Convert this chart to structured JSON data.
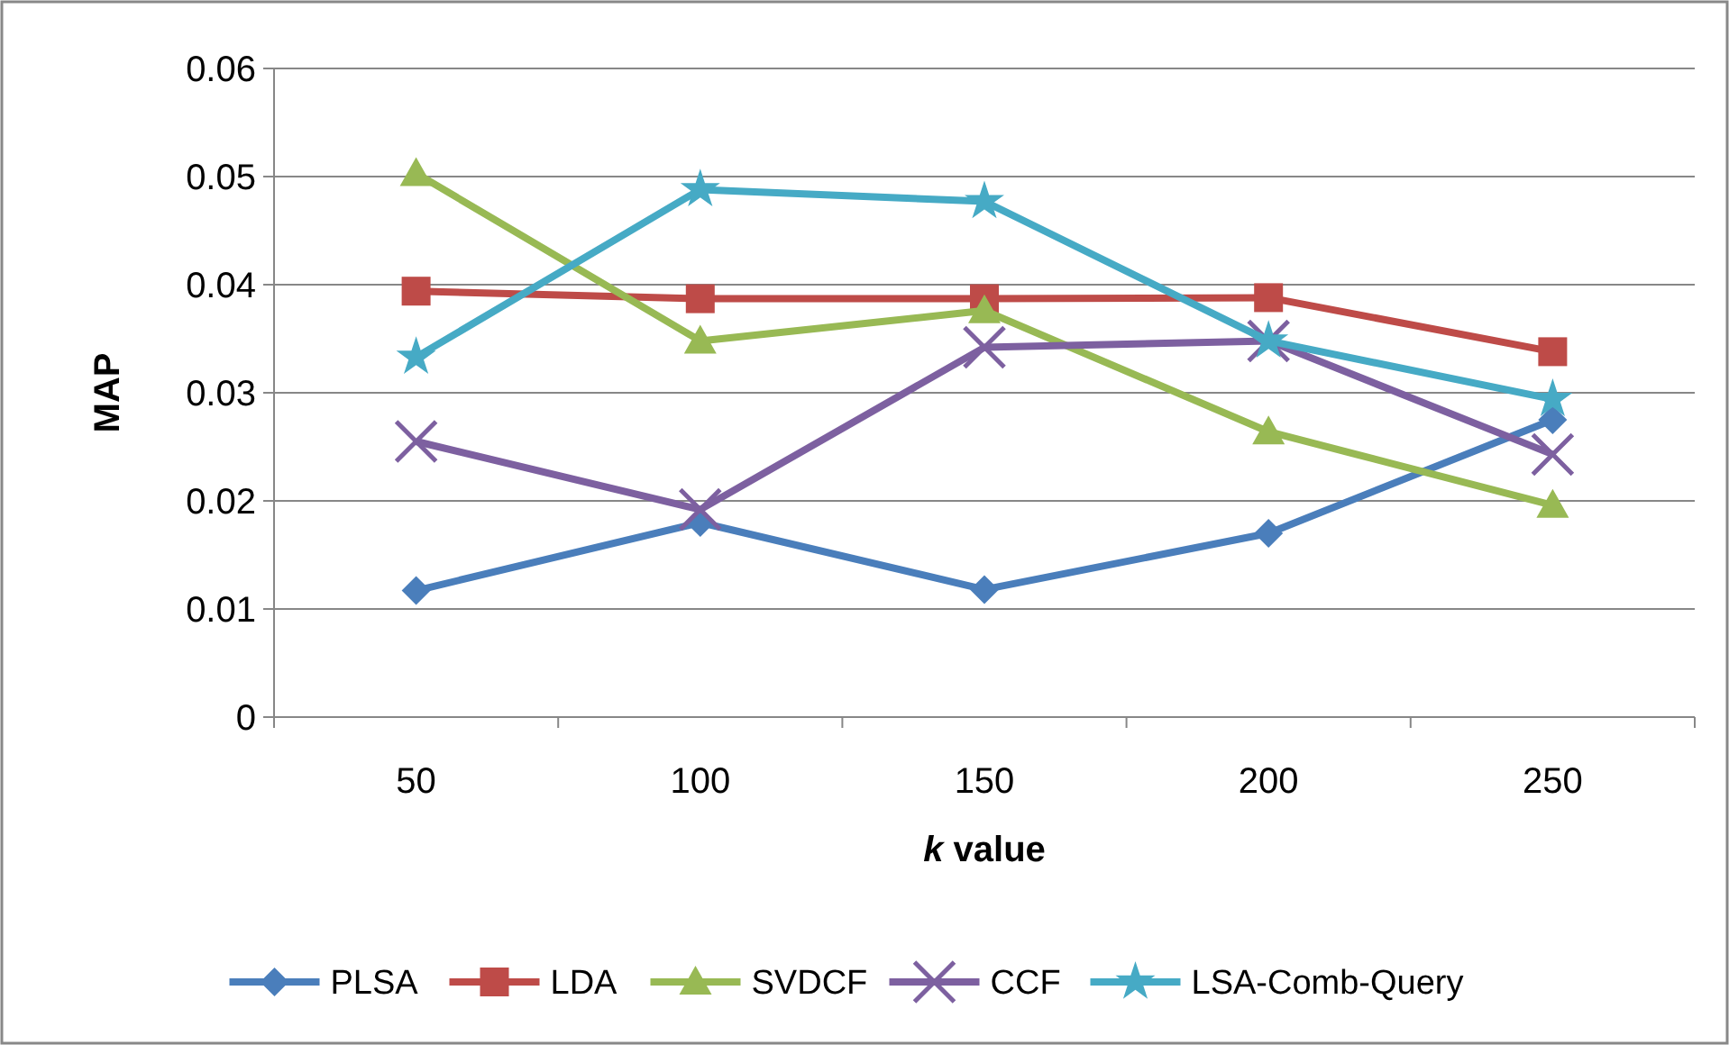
{
  "chart_data": {
    "type": "line",
    "xlabel": "k value",
    "ylabel": "MAP",
    "categories": [
      "50",
      "100",
      "150",
      "200",
      "250"
    ],
    "ylim": [
      0,
      0.06
    ],
    "yticks": [
      {
        "value": 0,
        "label": "0"
      },
      {
        "value": 0.01,
        "label": "0.01"
      },
      {
        "value": 0.02,
        "label": "0.02"
      },
      {
        "value": 0.03,
        "label": "0.03"
      },
      {
        "value": 0.04,
        "label": "0.04"
      },
      {
        "value": 0.05,
        "label": "0.05"
      },
      {
        "value": 0.06,
        "label": "0.06"
      }
    ],
    "grid": "y",
    "legend": "bottom",
    "series": [
      {
        "name": "PLSA",
        "color": "#4a7ebb",
        "marker": "diamond",
        "values": [
          0.0117,
          0.018,
          0.0118,
          0.017,
          0.0275
        ]
      },
      {
        "name": "LDA",
        "color": "#be4b48",
        "marker": "square",
        "values": [
          0.0394,
          0.0387,
          0.0387,
          0.0388,
          0.0338
        ]
      },
      {
        "name": "SVDCF",
        "color": "#98b954",
        "marker": "triangle",
        "values": [
          0.0503,
          0.0348,
          0.0376,
          0.0264,
          0.0196
        ]
      },
      {
        "name": "CCF",
        "color": "#7d60a0",
        "marker": "cross",
        "values": [
          0.0255,
          0.0192,
          0.0342,
          0.0348,
          0.0243
        ]
      },
      {
        "name": "LSA-Comb-Query",
        "color": "#46aac5",
        "marker": "star",
        "values": [
          0.0333,
          0.0488,
          0.0477,
          0.0348,
          0.0294
        ]
      }
    ]
  }
}
